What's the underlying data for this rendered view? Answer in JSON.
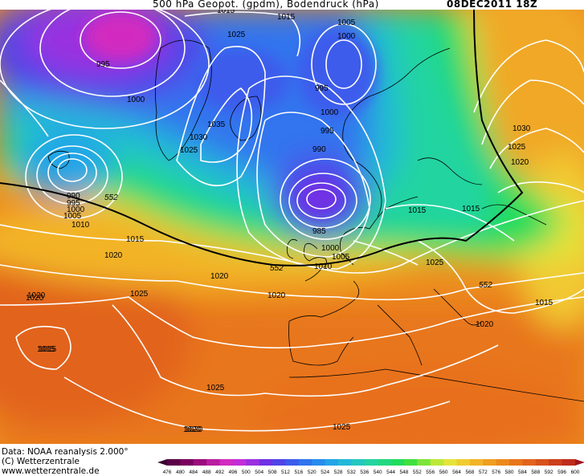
{
  "header": {
    "title": "500 hPa Geopot. (gpdm), Bodendruck (hPa)",
    "date": "08DEC2011 18Z"
  },
  "footer": {
    "line1": "Data: NOAA reanalysis 2.000°",
    "line2": "(C) Wetterzentrale",
    "line3": "www.wetterzentrale.de"
  },
  "colors": {
    "deep_low": "#d21cd6",
    "low": "#7a2ee6",
    "mid_low": "#3f6cf0",
    "mid": "#26b8c8",
    "green": "#1fd36a",
    "yellow": "#e8e63a",
    "orange": "#f29a1c",
    "red_orange": "#e2651c",
    "isobar": "#ffffff",
    "coast": "#000000"
  },
  "legend": {
    "ticks": [
      "476",
      "480",
      "484",
      "488",
      "492",
      "496",
      "500",
      "504",
      "508",
      "512",
      "516",
      "520",
      "524",
      "528",
      "532",
      "536",
      "540",
      "544",
      "548",
      "552",
      "556",
      "560",
      "564",
      "568",
      "572",
      "576",
      "580",
      "584",
      "588",
      "592",
      "596",
      "600"
    ],
    "colors": [
      "#5a0046",
      "#7a005e",
      "#9a0c7e",
      "#b81ea0",
      "#d22cc0",
      "#c22ed8",
      "#9a30e0",
      "#7030e4",
      "#5044e8",
      "#3c5cec",
      "#3074ee",
      "#288cee",
      "#22a4e8",
      "#22b8d8",
      "#24c8c0",
      "#24d4a0",
      "#22d880",
      "#22dc5c",
      "#40e040",
      "#7ce43a",
      "#bce838",
      "#e4e43a",
      "#f0cc30",
      "#f2b428",
      "#f09e20",
      "#ec8a1c",
      "#e8761c",
      "#e2641c",
      "#d8521c",
      "#cc3e1c",
      "#c02c1c"
    ]
  },
  "isobar_labels": [
    {
      "text": "1015"
    },
    {
      "text": "1015"
    },
    {
      "text": "1025"
    },
    {
      "text": "1005"
    },
    {
      "text": "1000"
    },
    {
      "text": "995"
    },
    {
      "text": "1000"
    },
    {
      "text": "995"
    },
    {
      "text": "1035"
    },
    {
      "text": "1030"
    },
    {
      "text": "1025"
    },
    {
      "text": "1000"
    },
    {
      "text": "995"
    },
    {
      "text": "990"
    },
    {
      "text": "1030"
    },
    {
      "text": "1025"
    },
    {
      "text": "1020"
    },
    {
      "text": "990"
    },
    {
      "text": "995"
    },
    {
      "text": "1000"
    },
    {
      "text": "1005"
    },
    {
      "text": "1010"
    },
    {
      "text": "1015"
    },
    {
      "text": "1020"
    },
    {
      "text": "1020"
    },
    {
      "text": "1020"
    },
    {
      "text": "1015"
    },
    {
      "text": "1025"
    },
    {
      "text": "1020"
    },
    {
      "text": "1015"
    },
    {
      "text": "1015"
    },
    {
      "text": "1025"
    },
    {
      "text": "1020"
    },
    {
      "text": "1025"
    },
    {
      "text": "1020"
    },
    {
      "text": "985"
    },
    {
      "text": "1000"
    },
    {
      "text": "1005"
    },
    {
      "text": "1010"
    },
    {
      "text": "1015"
    },
    {
      "text": "1020"
    },
    {
      "text": "1025"
    },
    {
      "text": "1020"
    },
    {
      "text": "1015"
    }
  ],
  "contour_labels": [
    {
      "text": "552"
    },
    {
      "text": "552"
    },
    {
      "text": "552"
    }
  ]
}
